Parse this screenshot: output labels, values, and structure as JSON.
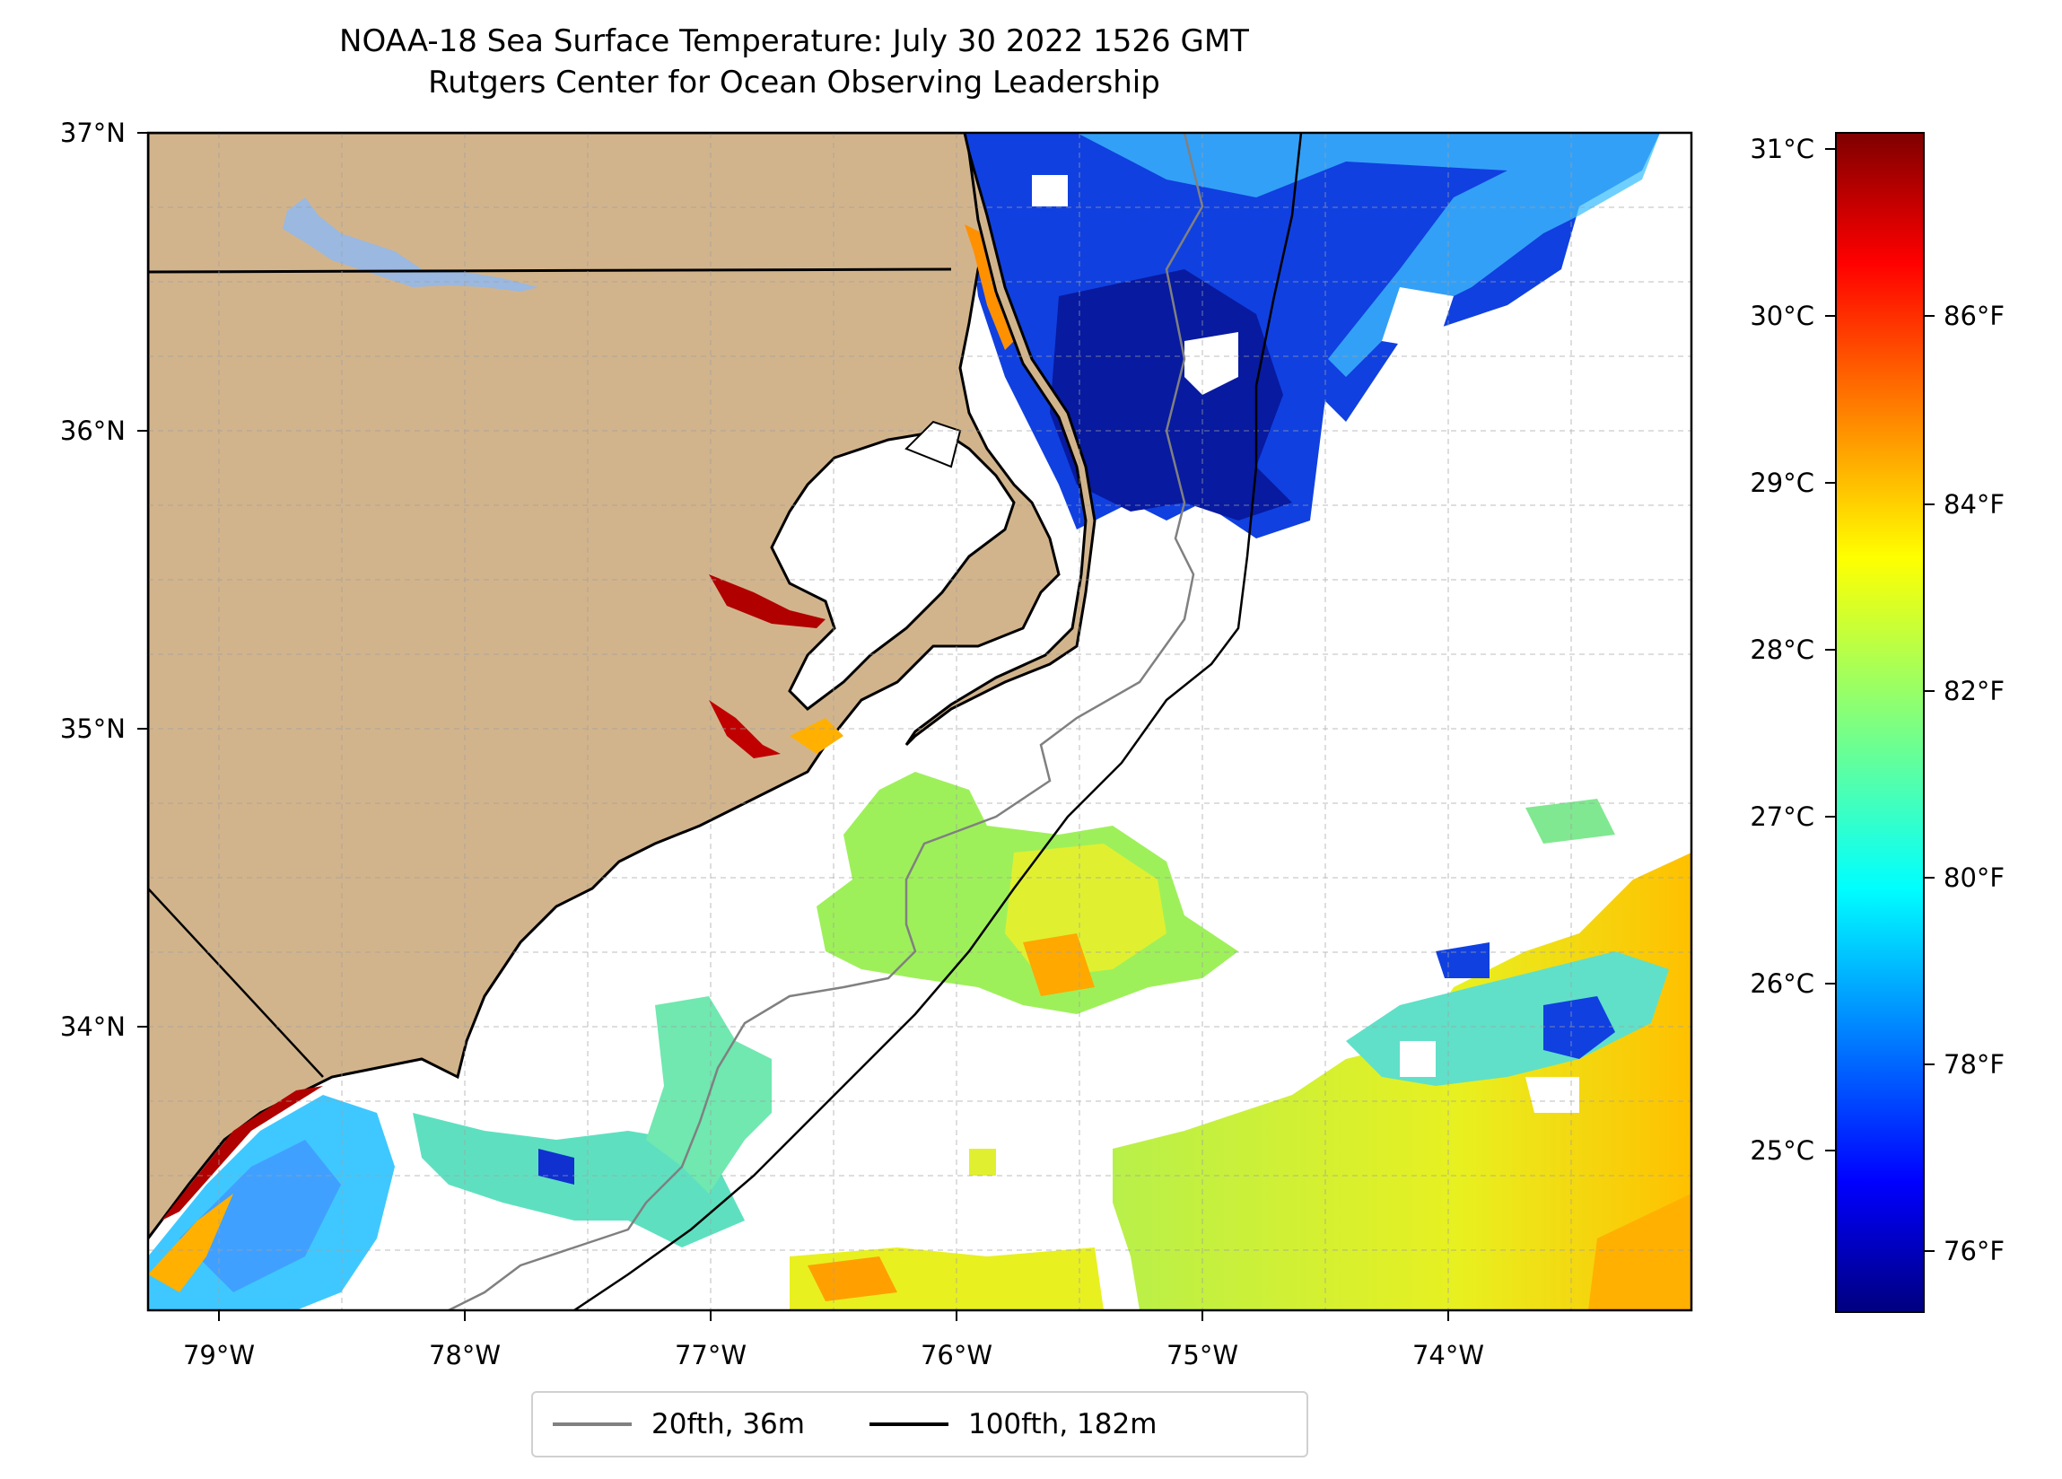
{
  "title": "NOAA-18 Sea Surface Temperature: July 30 2022 1526 GMT",
  "subtitle": "Rutgers Center for Ocean Observing Leadership",
  "map": {
    "lon_labels": [
      "79°W",
      "78°W",
      "77°W",
      "76°W",
      "75°W",
      "74°W"
    ],
    "lat_labels": [
      "37°N",
      "36°N",
      "35°N",
      "34°N"
    ],
    "land_color": "#d2b48c",
    "lake_color": "#9ab8e0",
    "grid": true
  },
  "colorbar": {
    "colormap": "jet",
    "celsius_labels": [
      "31°C",
      "30°C",
      "29°C",
      "28°C",
      "27°C",
      "26°C",
      "25°C"
    ],
    "fahrenheit_labels": [
      "86°F",
      "84°F",
      "82°F",
      "80°F",
      "78°F",
      "76°F"
    ]
  },
  "legend": [
    {
      "label": "20fth, 36m",
      "color": "#808080"
    },
    {
      "label": "100fth, 182m",
      "color": "#000000"
    }
  ]
}
